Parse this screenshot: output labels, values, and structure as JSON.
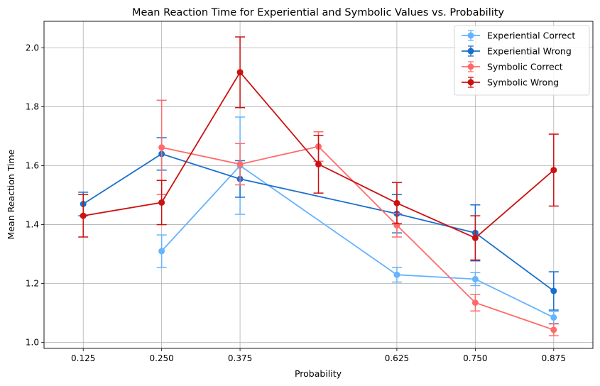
{
  "chart_data": {
    "type": "line",
    "title": "Mean Reaction Time for Experiential and Symbolic Values vs. Probability",
    "xlabel": "Probability",
    "ylabel": "Mean Reaction Time",
    "xlim": [
      0.0625,
      0.9375
    ],
    "ylim": [
      0.98,
      2.09
    ],
    "xticks": [
      0.125,
      0.25,
      0.375,
      0.625,
      0.75,
      0.875
    ],
    "xtick_labels": [
      "0.125",
      "0.250",
      "0.375",
      "0.625",
      "0.750",
      "0.875"
    ],
    "yticks": [
      1.0,
      1.2,
      1.4,
      1.6,
      1.8,
      2.0
    ],
    "ytick_labels": [
      "1.0",
      "1.2",
      "1.4",
      "1.6",
      "1.8",
      "2.0"
    ],
    "grid": true,
    "legend_position": "top-right",
    "series": [
      {
        "name": "Experiential Correct",
        "color": "#66b3ff",
        "points": [
          {
            "x": 0.25,
            "y": 1.31,
            "err": 0.055
          },
          {
            "x": 0.375,
            "y": 1.6,
            "err": 0.165
          },
          {
            "x": 0.625,
            "y": 1.23,
            "err": 0.025
          },
          {
            "x": 0.75,
            "y": 1.215,
            "err": 0.022
          },
          {
            "x": 0.875,
            "y": 1.085,
            "err": 0.02
          }
        ]
      },
      {
        "name": "Experiential Wrong",
        "color": "#1a6fcc",
        "points": [
          {
            "x": 0.125,
            "y": 1.47,
            "err": 0.04
          },
          {
            "x": 0.25,
            "y": 1.64,
            "err": 0.055
          },
          {
            "x": 0.375,
            "y": 1.555,
            "err": 0.062
          },
          {
            "x": 0.625,
            "y": 1.437,
            "err": 0.065
          },
          {
            "x": 0.75,
            "y": 1.372,
            "err": 0.095
          },
          {
            "x": 0.875,
            "y": 1.175,
            "err": 0.065
          }
        ]
      },
      {
        "name": "Symbolic Correct",
        "color": "#ff6b6b",
        "points": [
          {
            "x": 0.25,
            "y": 1.662,
            "err": 0.16
          },
          {
            "x": 0.375,
            "y": 1.605,
            "err": 0.07
          },
          {
            "x": 0.5,
            "y": 1.665,
            "err": 0.05
          },
          {
            "x": 0.625,
            "y": 1.398,
            "err": 0.04
          },
          {
            "x": 0.75,
            "y": 1.135,
            "err": 0.028
          },
          {
            "x": 0.875,
            "y": 1.043,
            "err": 0.02
          }
        ]
      },
      {
        "name": "Symbolic Wrong",
        "color": "#cc1111",
        "points": [
          {
            "x": 0.125,
            "y": 1.43,
            "err": 0.072
          },
          {
            "x": 0.25,
            "y": 1.475,
            "err": 0.075
          },
          {
            "x": 0.375,
            "y": 1.917,
            "err": 0.12
          },
          {
            "x": 0.5,
            "y": 1.605,
            "err": 0.098
          },
          {
            "x": 0.625,
            "y": 1.473,
            "err": 0.07
          },
          {
            "x": 0.75,
            "y": 1.355,
            "err": 0.075
          },
          {
            "x": 0.875,
            "y": 1.585,
            "err": 0.122
          }
        ]
      }
    ]
  }
}
